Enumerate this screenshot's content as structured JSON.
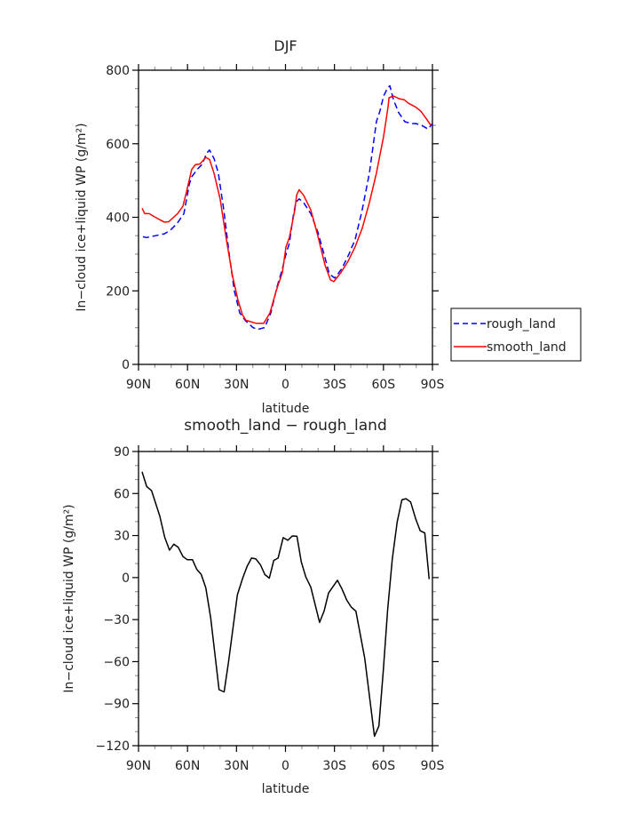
{
  "chart_data": [
    {
      "type": "line",
      "title": "DJF",
      "xlabel": "latitude",
      "ylabel": "In−cloud ice+liquid WP (g/m²)",
      "xlim": [
        -90,
        90
      ],
      "ylim": [
        0,
        800
      ],
      "xticks": [
        -90,
        -60,
        -30,
        0,
        30,
        60,
        90
      ],
      "xtick_labels": [
        "90N",
        "60N",
        "30N",
        "0",
        "30S",
        "60S",
        "90S"
      ],
      "yticks": [
        0,
        200,
        400,
        600,
        800
      ],
      "ytick_labels": [
        "0",
        "200",
        "400",
        "600",
        "800"
      ],
      "grid": false,
      "legend_position": "right",
      "series": [
        {
          "name": "rough_land",
          "color": "#0000ff",
          "dash": "dashed",
          "x": [
            -87.3,
            -85.1,
            -79.7,
            -74.2,
            -70.4,
            -66.1,
            -62.2,
            -58.9,
            -57.4,
            -54.1,
            -50.9,
            -48.2,
            -46.5,
            -43.8,
            -41.1,
            -37.8,
            -34.5,
            -31.3,
            -28,
            -24.7,
            -19.9,
            -17.1,
            -12.8,
            -9,
            -5.2,
            -1.9,
            0.3,
            2.4,
            4.6,
            6.3,
            8.4,
            11.1,
            15.5,
            19.8,
            24.2,
            26.9,
            30.2,
            34.5,
            38.9,
            42.7,
            47,
            51.4,
            55.7,
            57.9,
            60.1,
            62.3,
            63.9,
            66.1,
            69.3,
            73.1,
            76.9,
            79.7,
            83.5,
            87.3,
            90
          ],
          "y": [
            347,
            345,
            350,
            355,
            365,
            385,
            410,
            490,
            510,
            530,
            545,
            575,
            583,
            560,
            520,
            420,
            300,
            200,
            140,
            120,
            100,
            95,
            100,
            140,
            210,
            260,
            300,
            330,
            400,
            440,
            450,
            440,
            410,
            360,
            290,
            245,
            235,
            260,
            300,
            340,
            420,
            520,
            660,
            690,
            730,
            750,
            758,
            720,
            685,
            660,
            655,
            655,
            650,
            640,
            655
          ]
        },
        {
          "name": "smooth_land",
          "color": "#ff0000",
          "dash": "solid",
          "x": [
            -87.8,
            -86.2,
            -83.4,
            -79.7,
            -74.2,
            -71.5,
            -66.1,
            -62.8,
            -60.6,
            -57.4,
            -55.2,
            -52.5,
            -48.7,
            -46.5,
            -43.8,
            -40,
            -36.2,
            -32.4,
            -29.1,
            -26.4,
            -24.2,
            -18.2,
            -13.3,
            -9.5,
            -5.7,
            -1.9,
            0.3,
            2.4,
            5.7,
            6.8,
            8.4,
            11.1,
            15.5,
            19.8,
            24.2,
            27.5,
            29.6,
            34,
            38.3,
            42.7,
            47,
            51.4,
            55.7,
            60.1,
            62.8,
            63.4,
            66.1,
            69.9,
            72.6,
            75.3,
            79.7,
            83,
            86.8,
            89
          ],
          "y": [
            425,
            410,
            410,
            400,
            387,
            388,
            410,
            430,
            470,
            530,
            543,
            545,
            563,
            557,
            520,
            450,
            340,
            240,
            175,
            135,
            120,
            112,
            112,
            140,
            200,
            250,
            320,
            345,
            420,
            460,
            475,
            460,
            420,
            350,
            270,
            230,
            225,
            250,
            280,
            320,
            370,
            440,
            520,
            620,
            700,
            725,
            730,
            722,
            720,
            710,
            700,
            688,
            665,
            650
          ]
        }
      ]
    },
    {
      "type": "line",
      "title": "smooth_land − rough_land",
      "xlabel": "latitude",
      "ylabel": "In−cloud ice+liquid WP (g/m²)",
      "xlim": [
        -90,
        90
      ],
      "ylim": [
        -120,
        90
      ],
      "xticks": [
        -90,
        -60,
        -30,
        0,
        30,
        60,
        90
      ],
      "xtick_labels": [
        "90N",
        "60N",
        "30N",
        "0",
        "30S",
        "60S",
        "90S"
      ],
      "yticks": [
        -120,
        -90,
        -60,
        -30,
        0,
        30,
        60,
        90
      ],
      "ytick_labels": [
        "−120",
        "−90",
        "−60",
        "−30",
        "0",
        "30",
        "60",
        "90"
      ],
      "grid": false,
      "series": [
        {
          "name": "smooth_land - rough_land",
          "color": "#000000",
          "dash": "solid",
          "x": [
            -87.8,
            -85,
            -82,
            -77,
            -73.9,
            -71,
            -68.4,
            -65.7,
            -62.8,
            -60.1,
            -57,
            -54.3,
            -51.6,
            -48.8,
            -45.8,
            -40.7,
            -37.6,
            -34.9,
            -29.5,
            -26.2,
            -23.5,
            -20.8,
            -18.1,
            -15.3,
            -12.6,
            -9.9,
            -7.2,
            -4.5,
            -1.4,
            1.4,
            4.2,
            7,
            9.7,
            12.4,
            15.5,
            20.9,
            23.7,
            26.4,
            31.8,
            34.5,
            37.6,
            40.3,
            43.1,
            48.5,
            54.5,
            57.2,
            59.9,
            62.6,
            65.4,
            68.4,
            71.3,
            73.8,
            76.6,
            79.8,
            82.5,
            85.3,
            88
          ],
          "y": [
            75.5,
            65,
            62,
            44,
            28.5,
            19.6,
            23.8,
            21.7,
            15,
            12.7,
            12.8,
            5.9,
            2.3,
            -7.4,
            -28.9,
            -80,
            -81.6,
            -60.5,
            -12.4,
            -0.4,
            8,
            13.9,
            13.3,
            9,
            2.1,
            -0.4,
            12.2,
            13.9,
            28.5,
            26.6,
            29.7,
            29.5,
            11.2,
            0.6,
            -6.8,
            -32,
            -23.6,
            -11,
            -1.9,
            -7.8,
            -16.2,
            -21.1,
            -24,
            -57.4,
            -113.3,
            -105.9,
            -66.9,
            -22.6,
            13.3,
            39.7,
            55.5,
            56.3,
            54,
            41.8,
            33.4,
            31.8,
            -1.1
          ]
        }
      ]
    }
  ]
}
